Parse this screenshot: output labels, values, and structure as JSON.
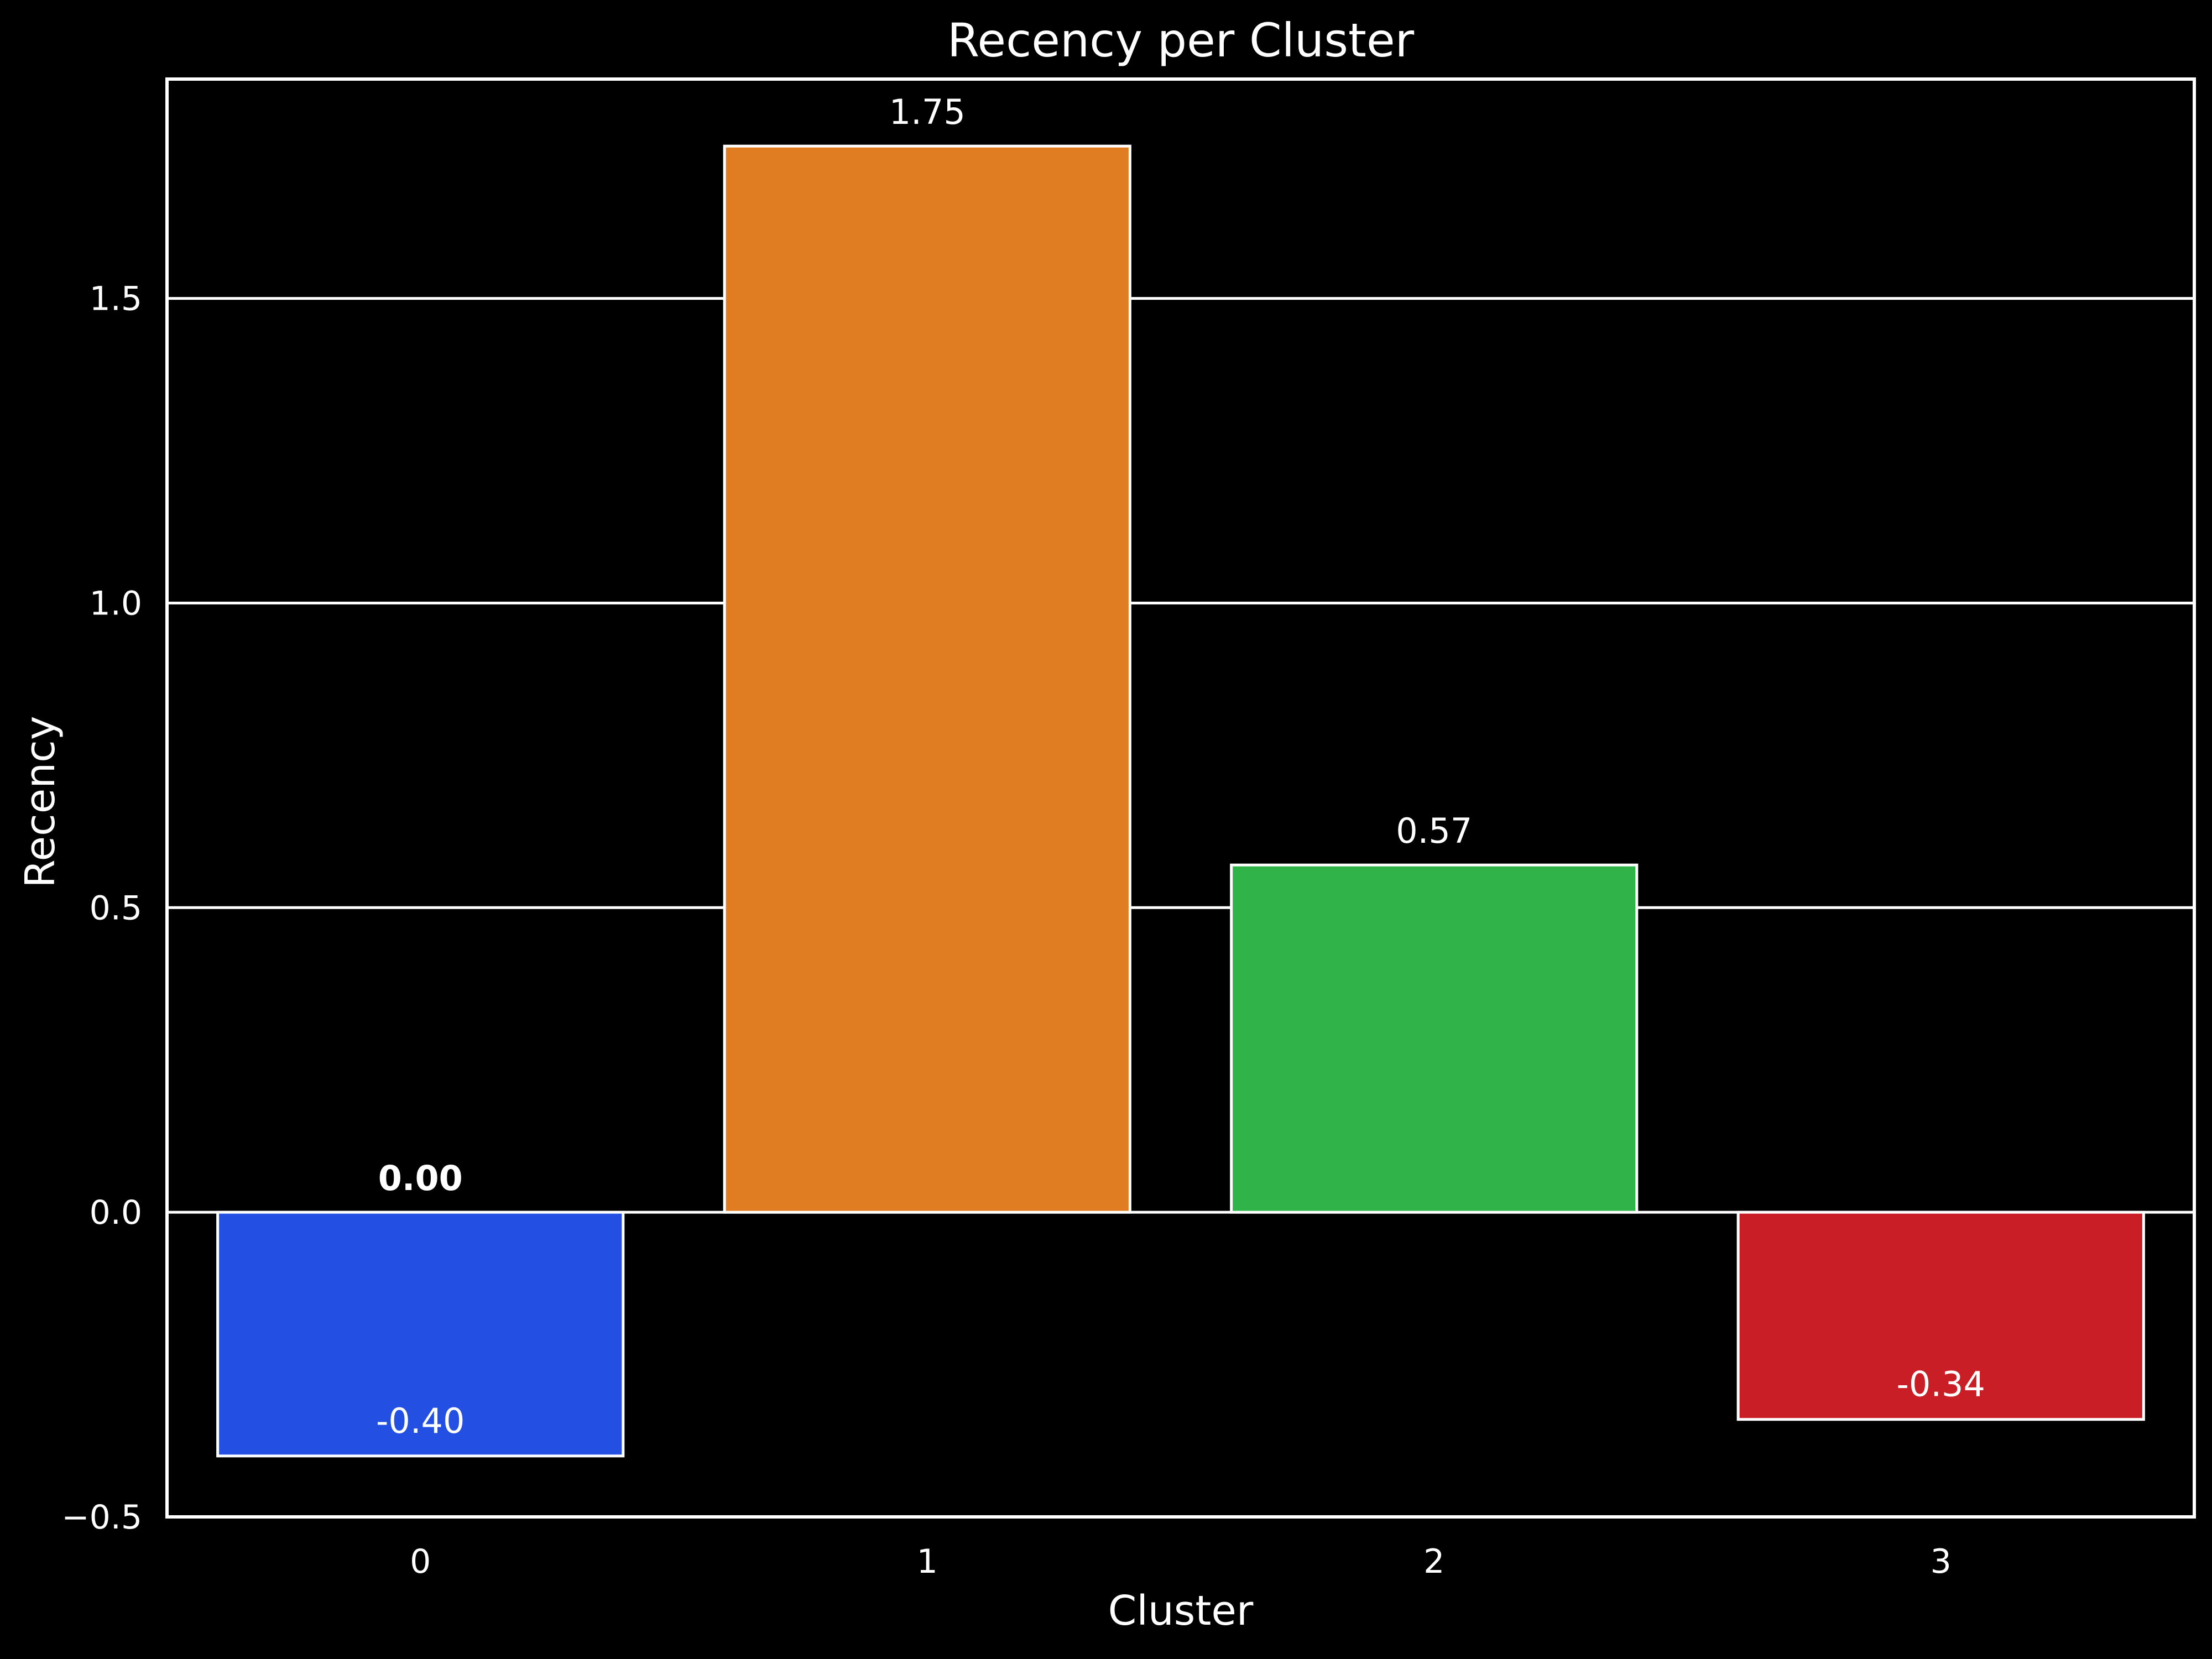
{
  "chart_data": {
    "type": "bar",
    "title": "Recency per Cluster",
    "xlabel": "Cluster",
    "ylabel": "Recency",
    "categories": [
      "0",
      "1",
      "2",
      "3"
    ],
    "values": [
      -0.4,
      1.75,
      0.57,
      -0.34
    ],
    "value_labels": [
      "-0.40",
      "1.75",
      "0.57",
      "-0.34"
    ],
    "zero_labels": [
      "0.00"
    ],
    "colors": [
      "#2350e2",
      "#e07c21",
      "#30b44a",
      "#c91e25"
    ],
    "ylim": [
      -0.5,
      1.86
    ],
    "yticks": [
      -0.5,
      0.0,
      0.5,
      1.0,
      1.5
    ],
    "ytick_labels": [
      "−0.5",
      "0.0",
      "0.5",
      "1.0",
      "1.5"
    ],
    "grid": "horizontal",
    "background": "#000000",
    "foreground": "#ffffff"
  }
}
